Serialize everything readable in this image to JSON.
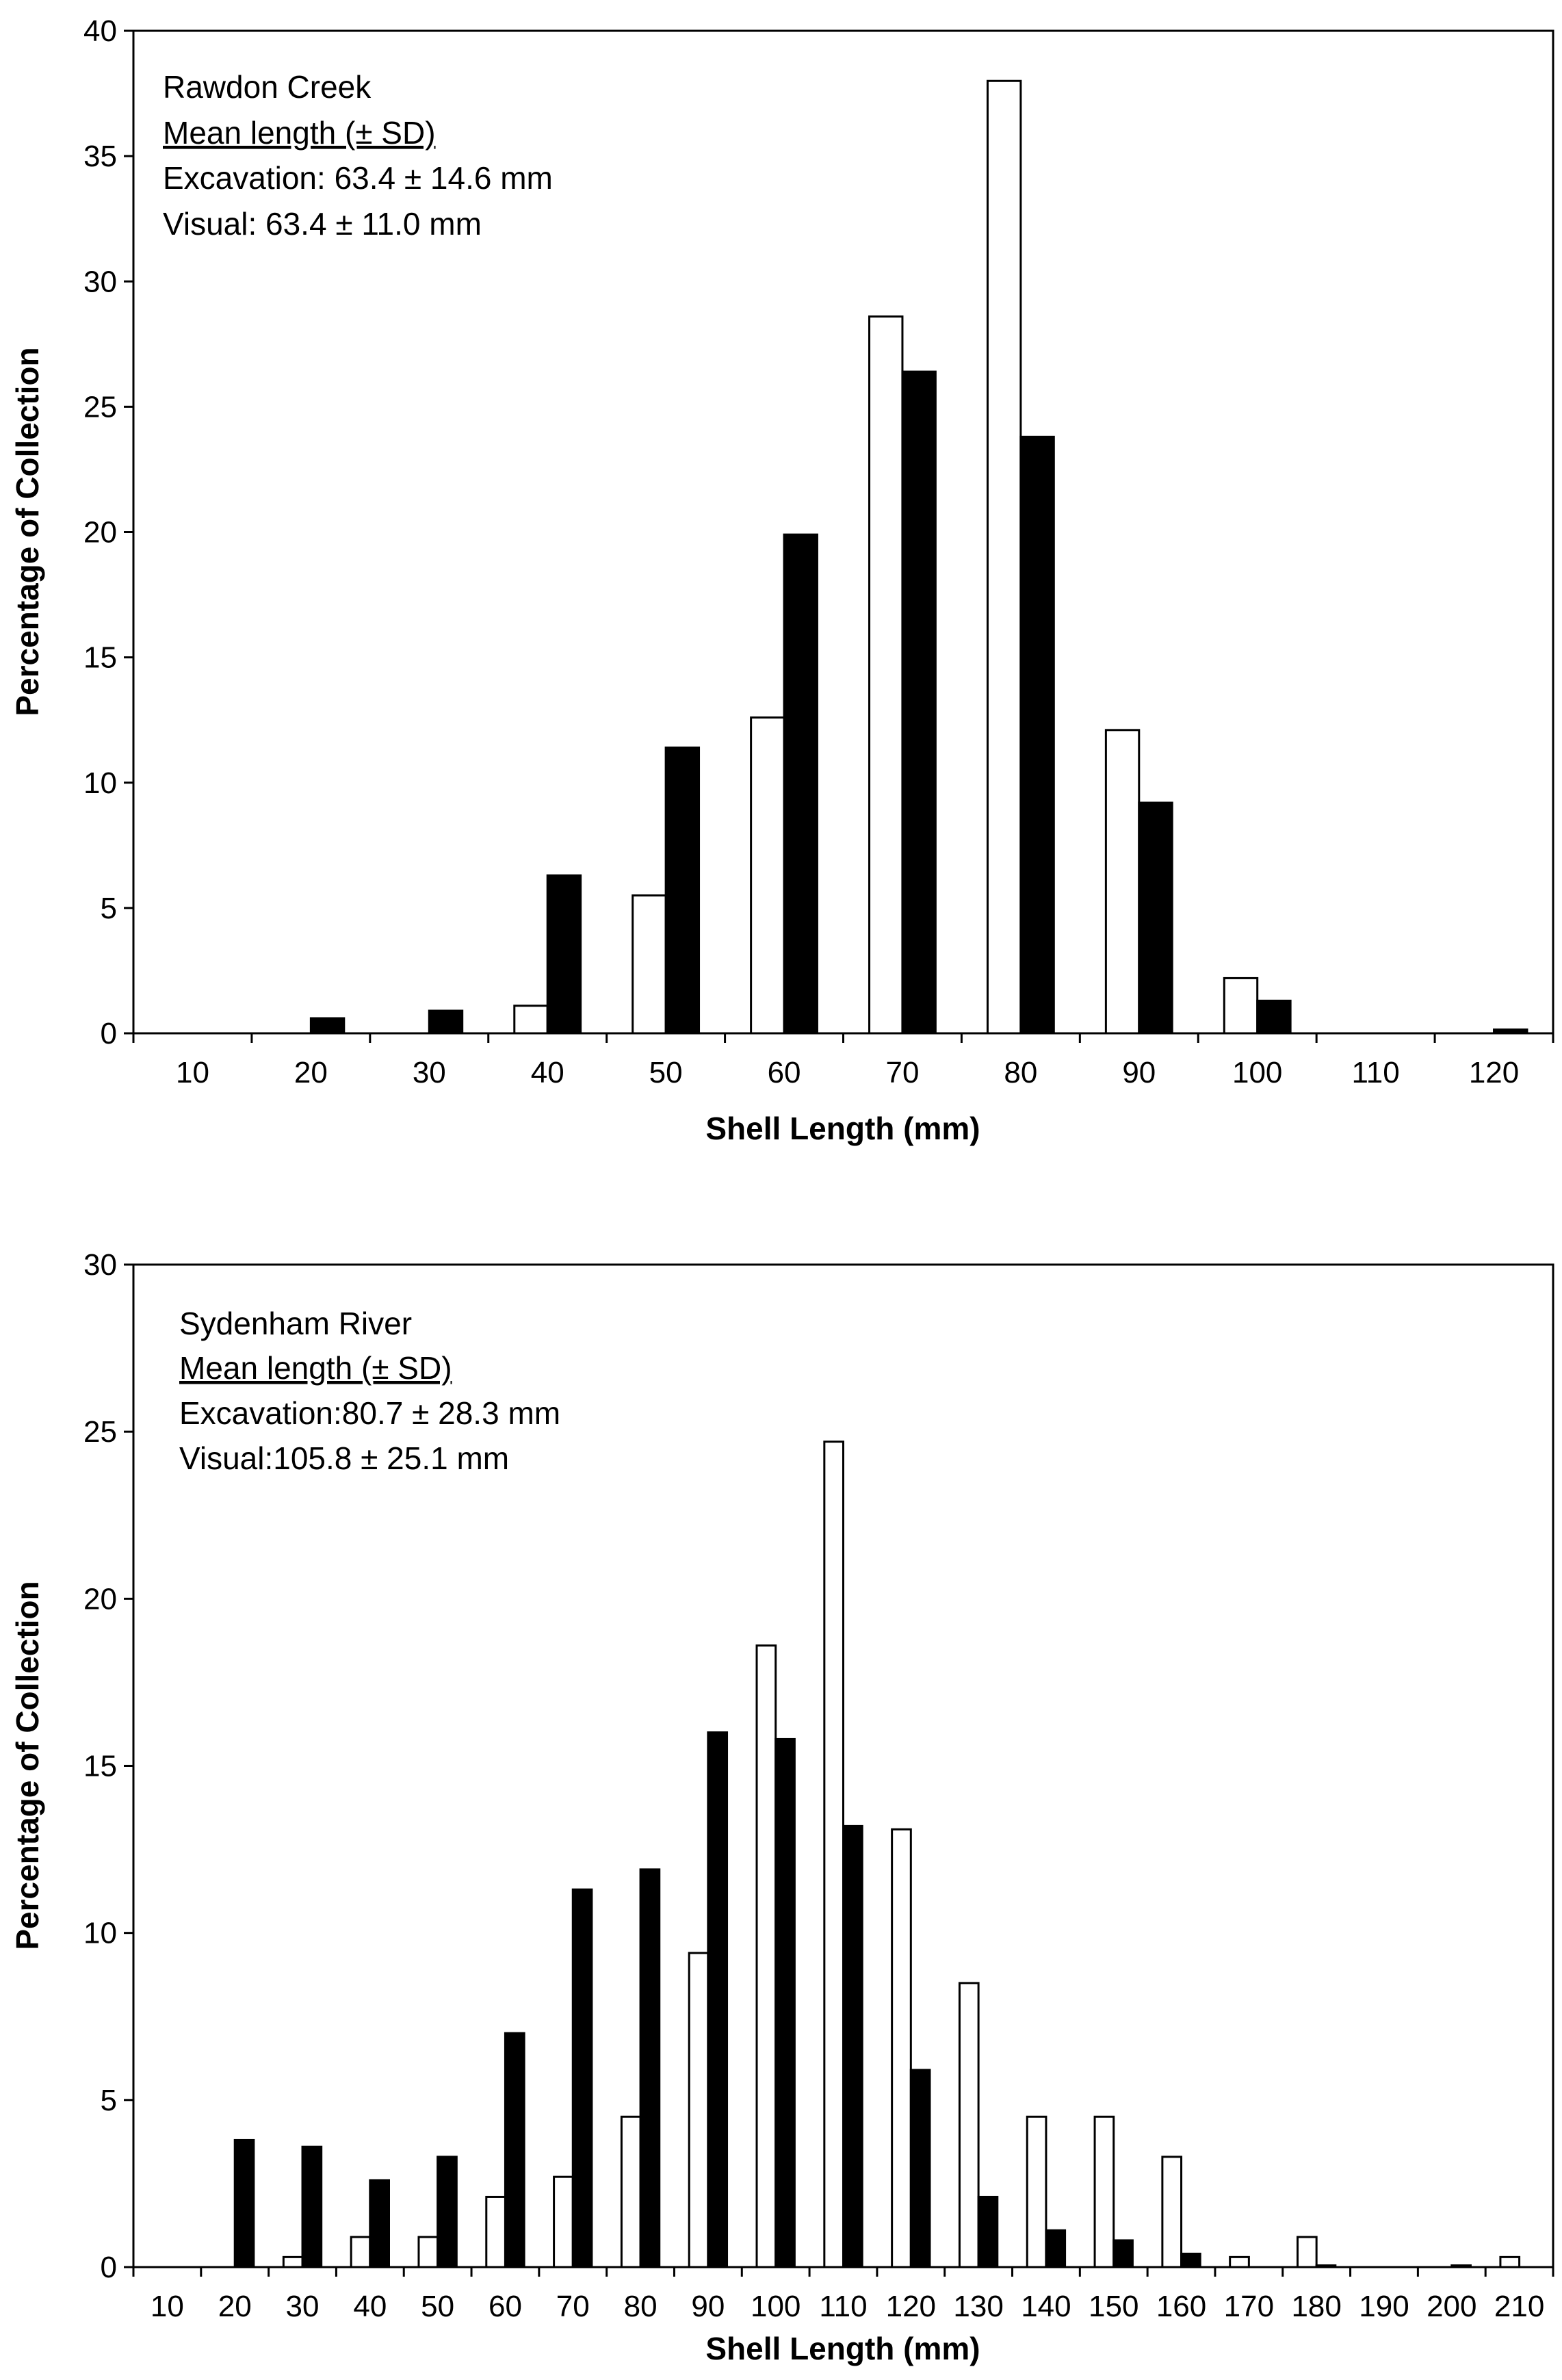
{
  "chart_data": [
    {
      "type": "bar",
      "title": "Rawdon Creek",
      "xlabel": "Shell Length (mm)",
      "ylabel": "Percentage of Collection",
      "ylim": [
        0,
        40
      ],
      "yticks": [
        0,
        5,
        10,
        15,
        20,
        25,
        30,
        35,
        40
      ],
      "categories": [
        "10",
        "20",
        "30",
        "40",
        "50",
        "60",
        "70",
        "80",
        "90",
        "100",
        "110",
        "120"
      ],
      "annotation": {
        "site": "Rawdon Creek",
        "heading": "Mean length (± SD)",
        "excavation": "Excavation: 63.4 ± 14.6 mm",
        "visual": "Visual: 63.4 ± 11.0 mm"
      },
      "series": [
        {
          "name": "Visual",
          "fill": "#ffffff",
          "values": [
            0,
            0,
            0,
            1.1,
            5.5,
            12.6,
            28.6,
            38.0,
            12.1,
            2.2,
            0,
            0
          ]
        },
        {
          "name": "Excavation",
          "fill": "#000000",
          "values": [
            0,
            0.6,
            0.9,
            6.3,
            11.4,
            19.9,
            26.4,
            23.8,
            9.2,
            1.3,
            0,
            0.15
          ]
        }
      ]
    },
    {
      "type": "bar",
      "title": "Sydenham River",
      "xlabel": "Shell Length (mm)",
      "ylabel": "Percentage of Collection",
      "ylim": [
        0,
        30
      ],
      "yticks": [
        0,
        5,
        10,
        15,
        20,
        25,
        30
      ],
      "categories": [
        "10",
        "20",
        "30",
        "40",
        "50",
        "60",
        "70",
        "80",
        "90",
        "100",
        "110",
        "120",
        "130",
        "140",
        "150",
        "160",
        "170",
        "180",
        "190",
        "200",
        "210"
      ],
      "annotation": {
        "site": "Sydenham River",
        "heading": "Mean length (± SD)",
        "excavation": "Excavation:80.7 ± 28.3 mm",
        "visual": "Visual:105.8 ± 25.1 mm"
      },
      "series": [
        {
          "name": "Visual",
          "fill": "#ffffff",
          "values": [
            0,
            0,
            0.3,
            0.9,
            0.9,
            2.1,
            2.7,
            4.5,
            9.4,
            18.6,
            24.7,
            13.1,
            8.5,
            4.5,
            4.5,
            3.3,
            0.3,
            0.9,
            0,
            0,
            0.3
          ]
        },
        {
          "name": "Excavation",
          "fill": "#000000",
          "values": [
            0,
            3.8,
            3.6,
            2.6,
            3.3,
            7.0,
            11.3,
            11.9,
            16.0,
            15.8,
            13.2,
            5.9,
            2.1,
            1.1,
            0.8,
            0.4,
            0,
            0.05,
            0,
            0.05,
            0
          ]
        }
      ]
    }
  ]
}
